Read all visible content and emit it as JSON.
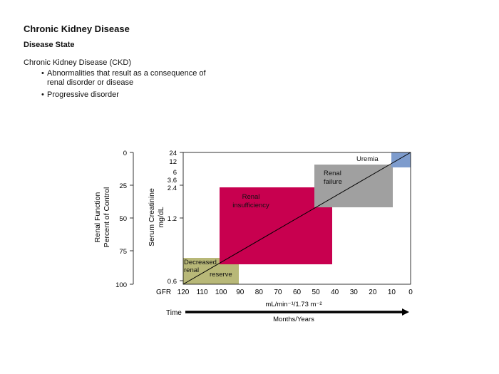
{
  "slide": {
    "title": "Chronic Kidney Disease",
    "subtitle": "Disease State",
    "intro": "Chronic Kidney Disease (CKD)",
    "bullets": [
      "Abnormalities that result as a consequence of renal disorder or disease",
      "Progressive disorder"
    ]
  },
  "figure": {
    "left_axis": {
      "label_line1": "Renal Function",
      "label_line2": "Percent of Control",
      "ticks": [
        "0",
        "25",
        "50",
        "75",
        "100"
      ]
    },
    "creatinine_axis": {
      "label_line1": "Serum Creatinine",
      "label_line2": "mg/dL",
      "ticks": [
        "24",
        "12",
        "6",
        "3.6",
        "2.4",
        "1.2",
        "0.6"
      ]
    },
    "gfr_axis": {
      "prefix": "GFR",
      "ticks": [
        "120",
        "110",
        "100",
        "90",
        "80",
        "70",
        "60",
        "50",
        "40",
        "30",
        "20",
        "10",
        "0"
      ],
      "unit_label": "mL/min⁻¹/1.73 m⁻²"
    },
    "stages": [
      {
        "line1": "Decreased",
        "line2": "renal",
        "line3": "reserve",
        "color": "#b8b878",
        "gfr_from": 120,
        "gfr_to": 90
      },
      {
        "line1": "Renal",
        "line2": "insufficiency",
        "color": "#c8004f",
        "gfr_from": 100,
        "gfr_to": 40
      },
      {
        "line1": "Renal",
        "line2": "failure",
        "color": "#a0a0a0",
        "gfr_from": 50,
        "gfr_to": 10
      },
      {
        "line1": "Uremia",
        "color": "#7e9ccd",
        "gfr_from": 10,
        "gfr_to": 0
      }
    ],
    "time": {
      "label": "Time",
      "caption": "Months/Years"
    }
  }
}
